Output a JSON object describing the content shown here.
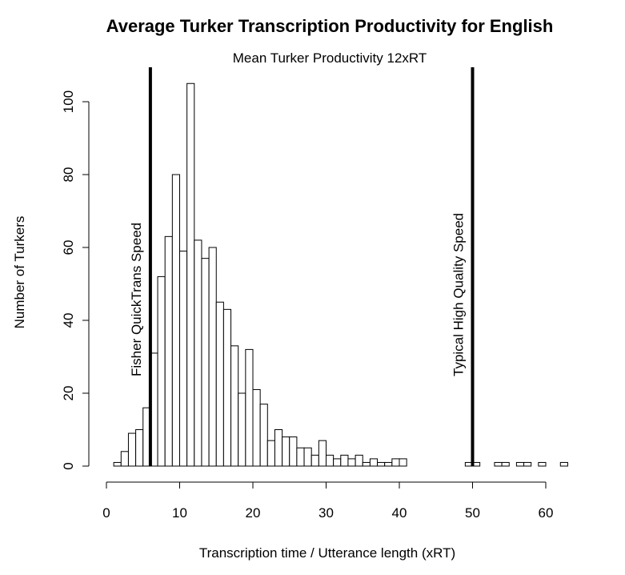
{
  "chart_data": {
    "type": "bar",
    "title": "Average Turker Transcription Productivity for English",
    "subtitle": "Mean Turker Productivity 12xRT",
    "xlabel": "Transcription time / Utterance length (xRT)",
    "ylabel": "Number of Turkers",
    "xlim": [
      0,
      62.5
    ],
    "ylim": [
      0,
      105
    ],
    "x_ticks": [
      0,
      10,
      20,
      30,
      40,
      50,
      60
    ],
    "y_ticks": [
      0,
      20,
      40,
      60,
      80,
      100
    ],
    "bin_width": 1,
    "bin_starts": [
      1,
      2,
      3,
      4,
      5,
      6,
      7,
      8,
      9,
      10,
      11,
      12,
      13,
      14,
      15,
      16,
      17,
      18,
      19,
      20,
      21,
      22,
      23,
      24,
      25,
      26,
      27,
      28,
      29,
      30,
      31,
      32,
      33,
      34,
      35,
      36,
      37,
      38,
      39,
      40,
      41,
      42,
      43,
      44,
      45,
      46,
      47,
      48,
      49,
      50,
      51,
      52,
      53,
      54,
      55,
      56,
      57,
      58,
      59,
      60,
      61,
      62
    ],
    "counts": [
      1,
      4,
      9,
      10,
      16,
      31,
      52,
      63,
      80,
      59,
      105,
      62,
      57,
      60,
      45,
      43,
      33,
      20,
      32,
      21,
      17,
      7,
      10,
      8,
      8,
      5,
      5,
      3,
      7,
      3,
      2,
      3,
      2,
      3,
      1,
      2,
      1,
      1,
      2,
      2,
      0,
      0,
      0,
      0,
      0,
      0,
      0,
      0,
      1,
      1,
      0,
      0,
      1,
      1,
      0,
      1,
      1,
      0,
      1,
      0,
      0,
      1
    ],
    "reference_lines": [
      {
        "x": 6,
        "label": "Fisher QuickTrans Speed"
      },
      {
        "x": 50,
        "label": "Typical High Quality Speed"
      }
    ]
  }
}
